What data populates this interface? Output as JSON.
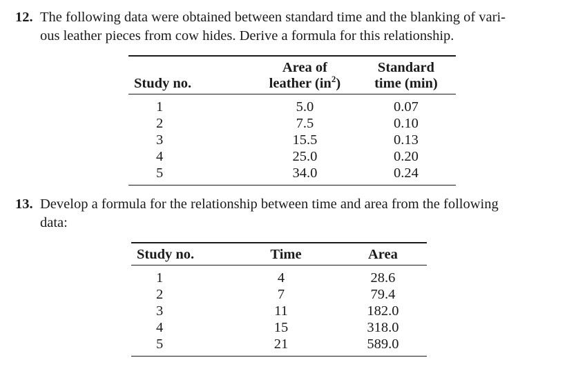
{
  "problem12": {
    "number": "12.",
    "line1": "The following data were obtained between standard time and the blanking of vari-",
    "line2": "ous leather pieces from cow hides. Derive a formula for this relationship."
  },
  "table1": {
    "headers": {
      "study": "Study no.",
      "area_line1": "Area of",
      "area_line2": "leather (in",
      "area_sup": "2",
      "area_close": ")",
      "time_line1": "Standard",
      "time_line2": "time (min)"
    },
    "rows": [
      {
        "study": "1",
        "area": "5.0",
        "time": "0.07"
      },
      {
        "study": "2",
        "area": "7.5",
        "time": "0.10"
      },
      {
        "study": "3",
        "area": "15.5",
        "time": "0.13"
      },
      {
        "study": "4",
        "area": "25.0",
        "time": "0.20"
      },
      {
        "study": "5",
        "area": "34.0",
        "time": "0.24"
      }
    ]
  },
  "problem13": {
    "number": "13.",
    "line1": "Develop a formula for the relationship between time and area from the following",
    "line2": "data:"
  },
  "table2": {
    "headers": {
      "study": "Study no.",
      "time": "Time",
      "area": "Area"
    },
    "rows": [
      {
        "study": "1",
        "time": "4",
        "area": "28.6"
      },
      {
        "study": "2",
        "time": "7",
        "area": "79.4"
      },
      {
        "study": "3",
        "time": "11",
        "area": "182.0"
      },
      {
        "study": "4",
        "time": "15",
        "area": "318.0"
      },
      {
        "study": "5",
        "time": "21",
        "area": "589.0"
      }
    ]
  }
}
